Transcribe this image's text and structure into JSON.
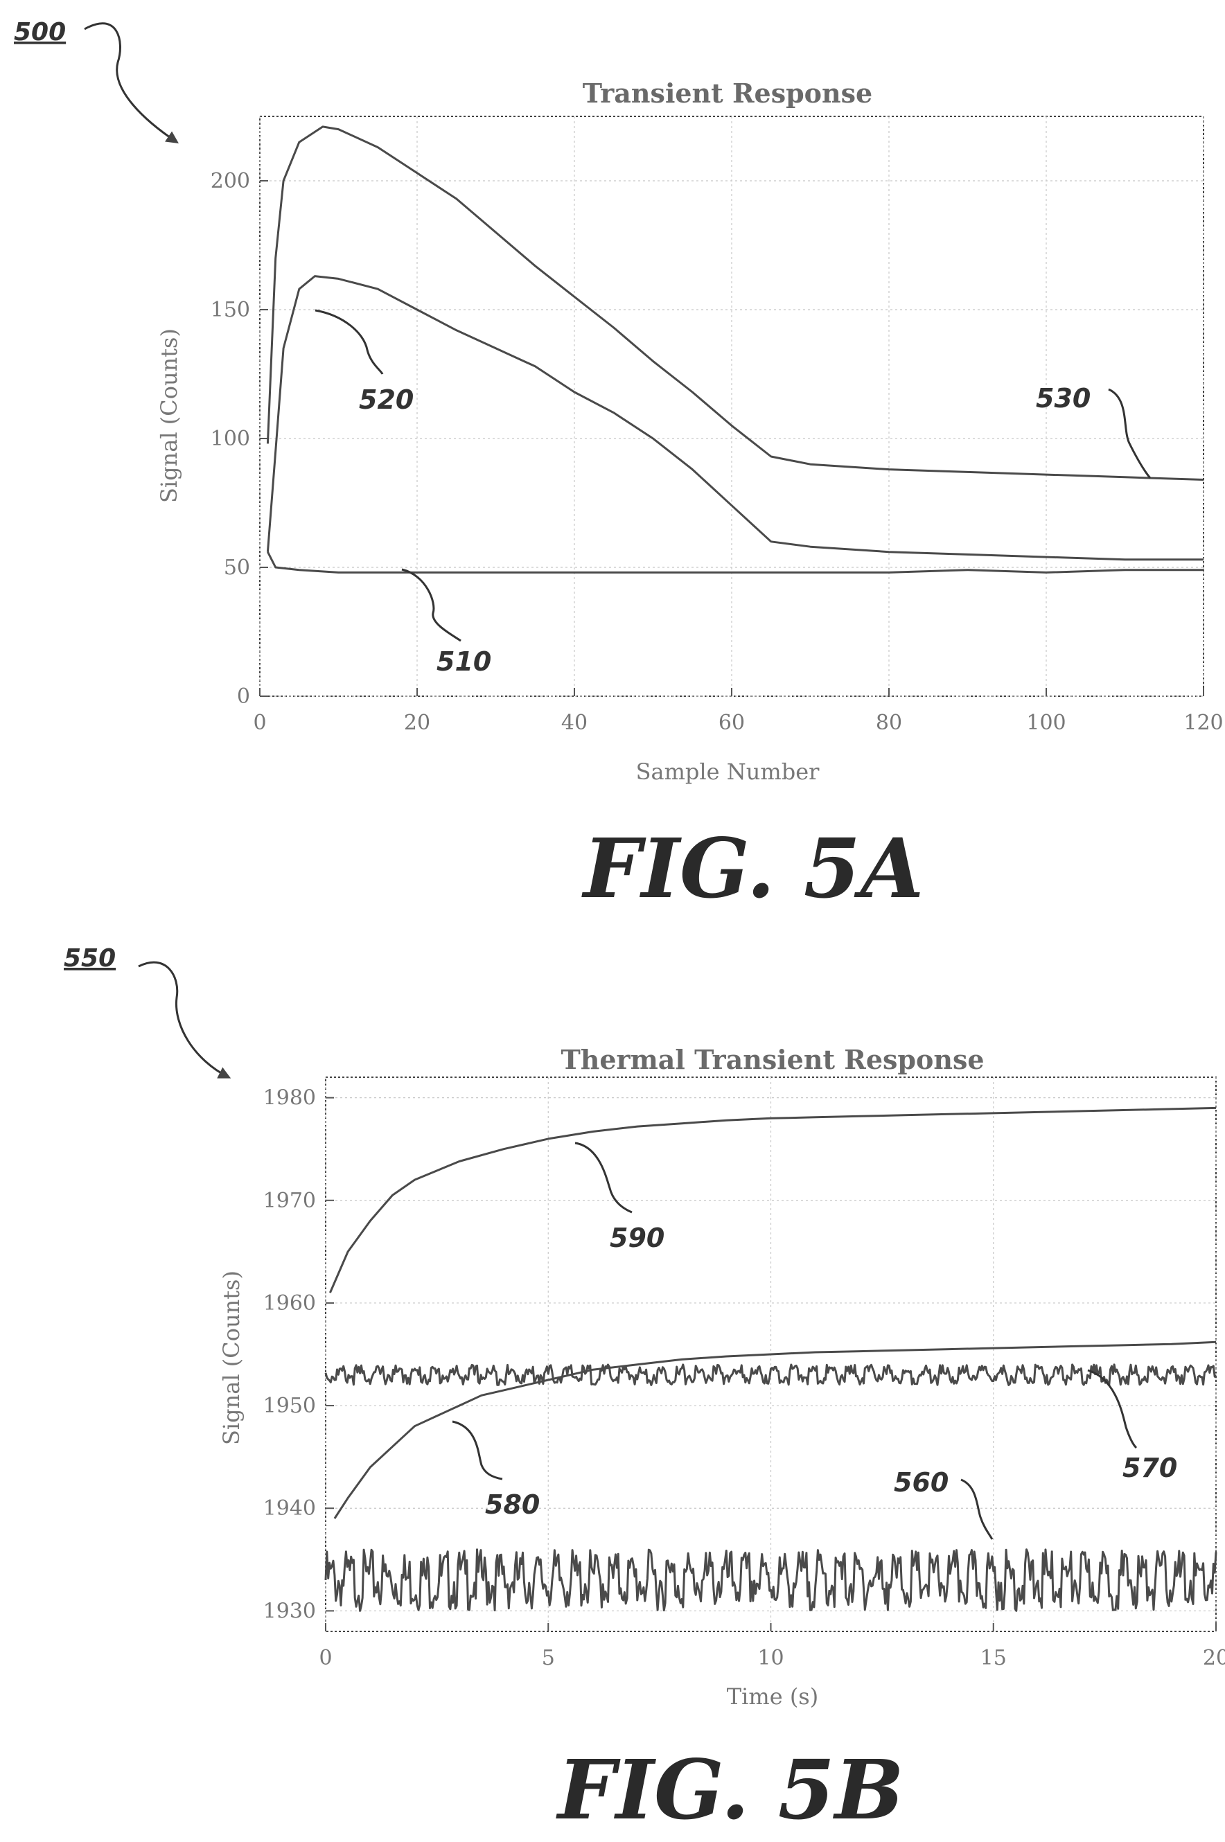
{
  "figure_refs": {
    "fig_a": "500",
    "fig_b": "550"
  },
  "captions": {
    "fig_a": "FIG. 5A",
    "fig_b": "FIG. 5B"
  },
  "chart_data": [
    {
      "type": "line",
      "title": "Transient Response",
      "xlabel": "Sample Number",
      "ylabel": "Signal (Counts)",
      "xlim": [
        0,
        120
      ],
      "ylim": [
        0,
        225
      ],
      "xticks": [
        0,
        20,
        40,
        60,
        80,
        100,
        120
      ],
      "yticks": [
        0,
        50,
        100,
        150,
        200
      ],
      "grid": true,
      "series": [
        {
          "ref": "510",
          "x": [
            1,
            2,
            5,
            10,
            20,
            30,
            40,
            50,
            60,
            70,
            80,
            90,
            100,
            110,
            120
          ],
          "y": [
            56,
            50,
            49,
            48,
            48,
            48,
            48,
            48,
            48,
            48,
            48,
            49,
            48,
            49,
            49
          ]
        },
        {
          "ref": "520",
          "x": [
            1,
            2,
            3,
            5,
            7,
            10,
            15,
            20,
            25,
            30,
            35,
            40,
            45,
            50,
            55,
            60,
            65,
            70,
            80,
            90,
            100,
            110,
            120
          ],
          "y": [
            56,
            95,
            135,
            158,
            163,
            162,
            158,
            150,
            142,
            135,
            128,
            118,
            110,
            100,
            88,
            74,
            60,
            58,
            56,
            55,
            54,
            53,
            53
          ]
        },
        {
          "ref": "530",
          "x": [
            1,
            2,
            3,
            5,
            8,
            10,
            15,
            20,
            25,
            30,
            35,
            40,
            45,
            50,
            55,
            60,
            65,
            70,
            80,
            90,
            100,
            110,
            120
          ],
          "y": [
            98,
            170,
            200,
            215,
            221,
            220,
            213,
            203,
            193,
            180,
            167,
            155,
            143,
            130,
            118,
            105,
            93,
            90,
            88,
            87,
            86,
            85,
            84
          ]
        }
      ],
      "annotations": [
        "510",
        "520",
        "530"
      ]
    },
    {
      "type": "line",
      "title": "Thermal Transient Response",
      "xlabel": "Time (s)",
      "ylabel": "Signal (Counts)",
      "xlim": [
        0,
        20
      ],
      "ylim": [
        1928,
        1982
      ],
      "xticks": [
        0,
        5,
        10,
        15,
        20
      ],
      "yticks": [
        1930,
        1940,
        1950,
        1960,
        1970,
        1980
      ],
      "grid": true,
      "series": [
        {
          "ref": "560",
          "x": [
            0,
            2,
            4,
            6,
            8,
            10,
            12,
            14,
            16,
            18,
            20
          ],
          "y": [
            1933,
            1933,
            1933,
            1933,
            1933,
            1933,
            1933,
            1933,
            1933,
            1933,
            1933
          ],
          "band": 3
        },
        {
          "ref": "570",
          "x": [
            0,
            2,
            4,
            6,
            8,
            10,
            12,
            14,
            16,
            18,
            20
          ],
          "y": [
            1953,
            1953,
            1953,
            1953,
            1953,
            1953,
            1953,
            1953,
            1953,
            1953,
            1953
          ],
          "band": 1
        },
        {
          "ref": "580",
          "x": [
            0.2,
            0.5,
            1,
            1.5,
            2,
            2.5,
            3,
            3.5,
            4,
            4.5,
            5,
            6,
            7,
            8,
            9,
            10,
            11,
            12,
            13,
            14,
            15,
            16,
            17,
            18,
            19,
            20
          ],
          "y": [
            1939,
            1941,
            1944,
            1946,
            1948,
            1949,
            1950,
            1951,
            1951.5,
            1952,
            1952.5,
            1953.5,
            1954,
            1954.5,
            1954.8,
            1955,
            1955.2,
            1955.3,
            1955.4,
            1955.5,
            1955.6,
            1955.7,
            1955.8,
            1955.9,
            1956,
            1956.2
          ]
        },
        {
          "ref": "590",
          "x": [
            0.1,
            0.5,
            1,
            1.5,
            2,
            3,
            4,
            5,
            6,
            7,
            8,
            9,
            10,
            11,
            12,
            13,
            14,
            15,
            16,
            17,
            18,
            19,
            20
          ],
          "y": [
            1961,
            1965,
            1968,
            1970.5,
            1972,
            1973.8,
            1975,
            1976,
            1976.7,
            1977.2,
            1977.5,
            1977.8,
            1978,
            1978.1,
            1978.2,
            1978.3,
            1978.4,
            1978.5,
            1978.6,
            1978.7,
            1978.8,
            1978.9,
            1979
          ]
        }
      ],
      "annotations": [
        "560",
        "570",
        "580",
        "590"
      ]
    }
  ]
}
